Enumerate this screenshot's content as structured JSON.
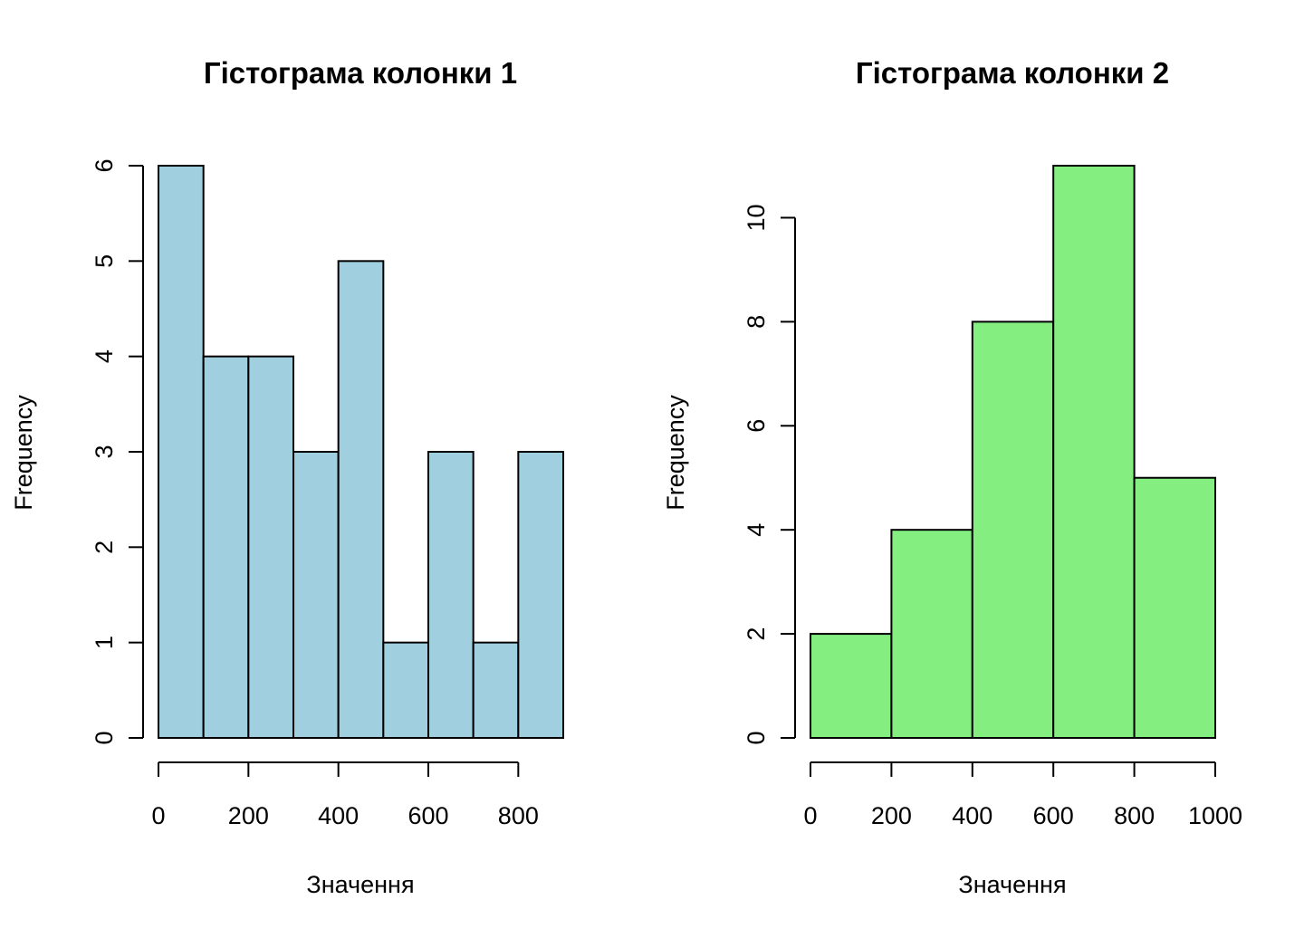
{
  "chart_data": [
    {
      "type": "bar",
      "title": "Гістограма колонки 1",
      "xlabel": "Значення",
      "ylabel": "Frequency",
      "bin_edges": [
        0,
        100,
        200,
        300,
        400,
        500,
        600,
        700,
        800,
        900
      ],
      "values": [
        6,
        4,
        4,
        3,
        5,
        1,
        3,
        1,
        3
      ],
      "xticks": [
        0,
        200,
        400,
        600,
        800
      ],
      "yticks": [
        0,
        1,
        2,
        3,
        4,
        5,
        6
      ],
      "xlim": [
        0,
        900
      ],
      "ylim": [
        0,
        6
      ],
      "bar_color": "#a0cfe0",
      "grid": false
    },
    {
      "type": "bar",
      "title": "Гістограма колонки 2",
      "xlabel": "Значення",
      "ylabel": "Frequency",
      "bin_edges": [
        0,
        200,
        400,
        600,
        800,
        1000
      ],
      "values": [
        2,
        4,
        8,
        11,
        5
      ],
      "xticks": [
        0,
        200,
        400,
        600,
        800,
        1000
      ],
      "yticks": [
        0,
        2,
        4,
        6,
        8,
        10
      ],
      "xlim": [
        0,
        1000
      ],
      "ylim": [
        0,
        11
      ],
      "bar_color": "#84ee80",
      "grid": false
    }
  ]
}
